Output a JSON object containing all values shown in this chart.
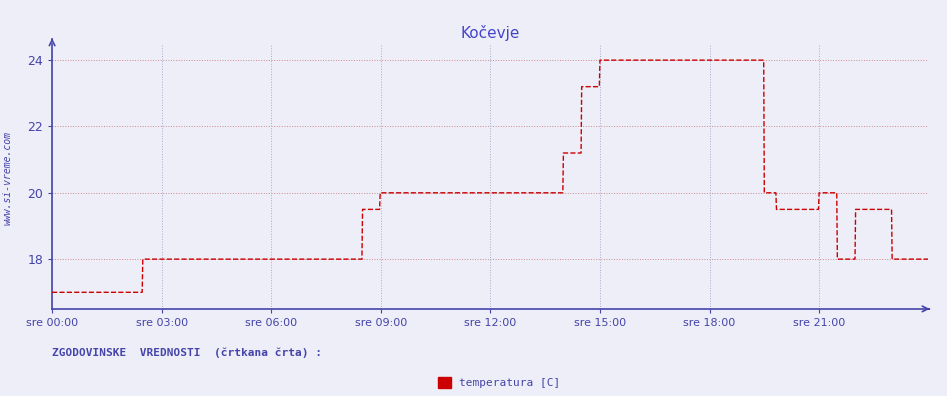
{
  "title": "Kočevje",
  "title_color": "#4444cc",
  "bg_color": "#eeeef8",
  "plot_bg_color": "#eeeef8",
  "grid_color_h": "#cc8888",
  "grid_color_v": "#aaaacc",
  "line_color": "#cc0000",
  "axis_color": "#4444aa",
  "ylabel_text": "www.si-vreme.com",
  "xlabel_ticks": [
    "sre 00:00",
    "sre 03:00",
    "sre 06:00",
    "sre 09:00",
    "sre 12:00",
    "sre 15:00",
    "sre 18:00",
    "sre 21:00"
  ],
  "xlabel_tick_positions": [
    0,
    180,
    360,
    540,
    720,
    900,
    1080,
    1260
  ],
  "legend_label": "temperatura [C]",
  "footer_text": "ZGODOVINSKE  VREDNOSTI  (črtkana črta) :",
  "ylim": [
    16.5,
    24.5
  ],
  "yticks": [
    18,
    20,
    22,
    24
  ],
  "xlim": [
    0,
    1439
  ],
  "time_minutes": [
    0,
    148,
    149,
    509,
    510,
    538,
    539,
    599,
    600,
    839,
    840,
    869,
    870,
    899,
    900,
    1109,
    1110,
    1129,
    1130,
    1149,
    1150,
    1169,
    1170,
    1189,
    1190,
    1249,
    1250,
    1259,
    1260,
    1289,
    1290,
    1319,
    1320,
    1379,
    1380,
    1409,
    1410,
    1439
  ],
  "temperatures": [
    17.0,
    17.0,
    18.0,
    18.0,
    19.5,
    19.5,
    20.0,
    20.0,
    20.0,
    20.0,
    21.2,
    21.2,
    23.2,
    23.2,
    24.0,
    24.0,
    24.0,
    24.0,
    24.0,
    24.0,
    24.0,
    24.0,
    20.0,
    20.0,
    19.5,
    19.5,
    19.5,
    19.5,
    20.0,
    20.0,
    18.0,
    18.0,
    19.5,
    19.5,
    18.0,
    18.0,
    18.0,
    18.0
  ]
}
